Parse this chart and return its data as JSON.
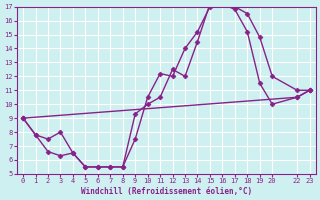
{
  "xlabel": "Windchill (Refroidissement éolien,°C)",
  "background_color": "#cff0f0",
  "grid_color": "#ffffff",
  "line_color": "#882288",
  "xlim": [
    -0.5,
    23.5
  ],
  "ylim": [
    5,
    17
  ],
  "xticks": [
    0,
    1,
    2,
    3,
    4,
    5,
    6,
    7,
    8,
    9,
    10,
    11,
    12,
    13,
    14,
    15,
    16,
    17,
    18,
    19,
    20,
    22,
    23
  ],
  "xtick_labels": [
    "0",
    "1",
    "2",
    "3",
    "4",
    "5",
    "6",
    "7",
    "8",
    "9",
    "10",
    "11",
    "12",
    "13",
    "14",
    "15",
    "16",
    "17",
    "18",
    "19",
    "20",
    "22",
    "23"
  ],
  "yticks": [
    5,
    6,
    7,
    8,
    9,
    10,
    11,
    12,
    13,
    14,
    15,
    16,
    17
  ],
  "ytick_labels": [
    "5",
    "6",
    "7",
    "8",
    "9",
    "10",
    "11",
    "12",
    "13",
    "14",
    "15",
    "16",
    "17"
  ],
  "line1_x": [
    0,
    1,
    2,
    3,
    4,
    5,
    6,
    7,
    8,
    9,
    10,
    11,
    12,
    13,
    14,
    15,
    16,
    17,
    18,
    19,
    20,
    22,
    23
  ],
  "line1_y": [
    9.0,
    7.8,
    6.6,
    6.3,
    6.5,
    5.5,
    5.5,
    5.5,
    5.5,
    7.5,
    10.5,
    12.2,
    12.0,
    14.0,
    15.2,
    17.0,
    17.2,
    17.0,
    16.5,
    14.8,
    12.0,
    11.0,
    11.0
  ],
  "line2_x": [
    0,
    1,
    2,
    3,
    4,
    5,
    6,
    7,
    8,
    9,
    10,
    11,
    12,
    13,
    14,
    15,
    16,
    17,
    18,
    19,
    20,
    22,
    23
  ],
  "line2_y": [
    9.0,
    7.8,
    7.5,
    8.0,
    6.5,
    5.5,
    5.5,
    5.5,
    5.5,
    9.3,
    10.0,
    10.5,
    12.5,
    12.0,
    14.5,
    17.2,
    17.2,
    16.8,
    15.2,
    11.5,
    10.0,
    10.5,
    11.0
  ],
  "line3_x": [
    0,
    22,
    23
  ],
  "line3_y": [
    9.0,
    10.5,
    11.0
  ],
  "marker": "D",
  "marker_size": 2.5,
  "linewidth": 1.0
}
